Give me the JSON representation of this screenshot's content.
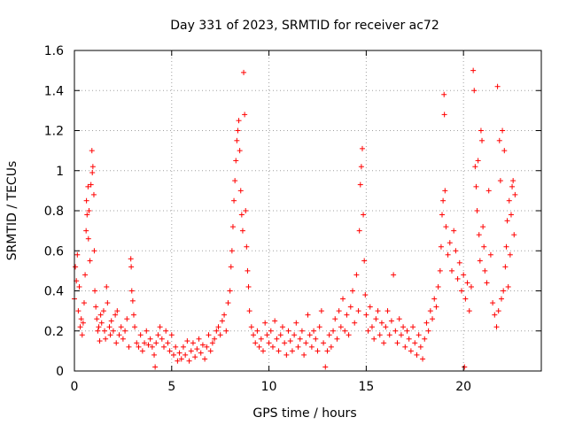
{
  "chart_data": {
    "type": "scatter",
    "title": "Day 331 of 2023, SRMTID for receiver ac72",
    "xlabel": "GPS time / hours",
    "ylabel": "SRMTID / TECUs",
    "xlim": [
      0,
      24
    ],
    "ylim": [
      0,
      1.6
    ],
    "x_ticks": [
      0,
      5,
      10,
      15,
      20
    ],
    "x_tick_labels": [
      "0",
      "5",
      "10",
      "15",
      "20"
    ],
    "y_ticks": [
      0,
      0.2,
      0.4,
      0.6,
      0.8,
      1,
      1.2,
      1.4,
      1.6
    ],
    "y_tick_labels": [
      "0",
      "0.2",
      "0.4",
      "0.6",
      "0.8",
      "1",
      "1.2",
      "1.4",
      "1.6"
    ],
    "grid": true,
    "marker": "plus",
    "series": [
      {
        "name": "SRMTID",
        "color": "#ff0000",
        "points": [
          [
            0.0,
            0.36
          ],
          [
            0.05,
            0.52
          ],
          [
            0.1,
            0.45
          ],
          [
            0.15,
            0.58
          ],
          [
            0.2,
            0.3
          ],
          [
            0.25,
            0.42
          ],
          [
            0.3,
            0.22
          ],
          [
            0.35,
            0.26
          ],
          [
            0.4,
            0.18
          ],
          [
            0.45,
            0.24
          ],
          [
            0.5,
            0.34
          ],
          [
            0.55,
            0.48
          ],
          [
            0.6,
            0.7
          ],
          [
            0.62,
            0.85
          ],
          [
            0.65,
            0.78
          ],
          [
            0.7,
            0.92
          ],
          [
            0.72,
            0.66
          ],
          [
            0.75,
            0.8
          ],
          [
            0.8,
            0.55
          ],
          [
            0.85,
            0.93
          ],
          [
            0.9,
            1.1
          ],
          [
            0.92,
            0.99
          ],
          [
            0.95,
            1.02
          ],
          [
            1.0,
            0.88
          ],
          [
            1.02,
            0.6
          ],
          [
            1.05,
            0.4
          ],
          [
            1.1,
            0.32
          ],
          [
            1.15,
            0.26
          ],
          [
            1.2,
            0.2
          ],
          [
            1.25,
            0.22
          ],
          [
            1.3,
            0.15
          ],
          [
            1.35,
            0.28
          ],
          [
            1.4,
            0.24
          ],
          [
            1.5,
            0.3
          ],
          [
            1.55,
            0.2
          ],
          [
            1.6,
            0.16
          ],
          [
            1.65,
            0.42
          ],
          [
            1.7,
            0.34
          ],
          [
            1.8,
            0.22
          ],
          [
            1.85,
            0.18
          ],
          [
            1.9,
            0.25
          ],
          [
            2.0,
            0.2
          ],
          [
            2.1,
            0.28
          ],
          [
            2.15,
            0.14
          ],
          [
            2.2,
            0.3
          ],
          [
            2.3,
            0.18
          ],
          [
            2.4,
            0.22
          ],
          [
            2.5,
            0.16
          ],
          [
            2.6,
            0.2
          ],
          [
            2.7,
            0.26
          ],
          [
            2.8,
            0.12
          ],
          [
            2.9,
            0.56
          ],
          [
            2.92,
            0.52
          ],
          [
            2.95,
            0.4
          ],
          [
            3.0,
            0.35
          ],
          [
            3.05,
            0.28
          ],
          [
            3.1,
            0.22
          ],
          [
            3.2,
            0.14
          ],
          [
            3.3,
            0.12
          ],
          [
            3.4,
            0.18
          ],
          [
            3.5,
            0.1
          ],
          [
            3.6,
            0.14
          ],
          [
            3.7,
            0.2
          ],
          [
            3.8,
            0.13
          ],
          [
            3.9,
            0.16
          ],
          [
            4.0,
            0.12
          ],
          [
            4.1,
            0.08
          ],
          [
            4.15,
            0.02
          ],
          [
            4.2,
            0.14
          ],
          [
            4.3,
            0.18
          ],
          [
            4.4,
            0.22
          ],
          [
            4.5,
            0.16
          ],
          [
            4.6,
            0.12
          ],
          [
            4.7,
            0.2
          ],
          [
            4.8,
            0.14
          ],
          [
            4.9,
            0.1
          ],
          [
            5.0,
            0.18
          ],
          [
            5.1,
            0.08
          ],
          [
            5.2,
            0.12
          ],
          [
            5.3,
            0.05
          ],
          [
            5.4,
            0.09
          ],
          [
            5.5,
            0.06
          ],
          [
            5.6,
            0.12
          ],
          [
            5.7,
            0.08
          ],
          [
            5.8,
            0.15
          ],
          [
            5.9,
            0.05
          ],
          [
            6.0,
            0.1
          ],
          [
            6.1,
            0.14
          ],
          [
            6.2,
            0.07
          ],
          [
            6.3,
            0.11
          ],
          [
            6.4,
            0.16
          ],
          [
            6.5,
            0.09
          ],
          [
            6.6,
            0.13
          ],
          [
            6.7,
            0.06
          ],
          [
            6.8,
            0.12
          ],
          [
            6.9,
            0.18
          ],
          [
            7.0,
            0.1
          ],
          [
            7.1,
            0.14
          ],
          [
            7.2,
            0.16
          ],
          [
            7.3,
            0.2
          ],
          [
            7.4,
            0.22
          ],
          [
            7.5,
            0.18
          ],
          [
            7.6,
            0.25
          ],
          [
            7.7,
            0.28
          ],
          [
            7.8,
            0.2
          ],
          [
            7.9,
            0.34
          ],
          [
            8.0,
            0.4
          ],
          [
            8.05,
            0.52
          ],
          [
            8.1,
            0.6
          ],
          [
            8.15,
            0.72
          ],
          [
            8.2,
            0.85
          ],
          [
            8.25,
            0.95
          ],
          [
            8.3,
            1.05
          ],
          [
            8.35,
            1.15
          ],
          [
            8.4,
            1.2
          ],
          [
            8.45,
            1.25
          ],
          [
            8.5,
            1.1
          ],
          [
            8.55,
            0.9
          ],
          [
            8.6,
            0.78
          ],
          [
            8.65,
            0.7
          ],
          [
            8.7,
            1.49
          ],
          [
            8.75,
            1.28
          ],
          [
            8.8,
            0.8
          ],
          [
            8.85,
            0.62
          ],
          [
            8.9,
            0.5
          ],
          [
            8.95,
            0.42
          ],
          [
            9.0,
            0.3
          ],
          [
            9.1,
            0.22
          ],
          [
            9.2,
            0.18
          ],
          [
            9.3,
            0.14
          ],
          [
            9.4,
            0.2
          ],
          [
            9.5,
            0.12
          ],
          [
            9.6,
            0.16
          ],
          [
            9.7,
            0.1
          ],
          [
            9.8,
            0.24
          ],
          [
            9.9,
            0.18
          ],
          [
            10.0,
            0.14
          ],
          [
            10.1,
            0.2
          ],
          [
            10.2,
            0.12
          ],
          [
            10.3,
            0.25
          ],
          [
            10.4,
            0.16
          ],
          [
            10.5,
            0.1
          ],
          [
            10.6,
            0.18
          ],
          [
            10.7,
            0.22
          ],
          [
            10.8,
            0.14
          ],
          [
            10.9,
            0.08
          ],
          [
            11.0,
            0.2
          ],
          [
            11.1,
            0.15
          ],
          [
            11.2,
            0.1
          ],
          [
            11.3,
            0.18
          ],
          [
            11.4,
            0.24
          ],
          [
            11.5,
            0.12
          ],
          [
            11.6,
            0.16
          ],
          [
            11.7,
            0.2
          ],
          [
            11.8,
            0.08
          ],
          [
            11.9,
            0.14
          ],
          [
            12.0,
            0.28
          ],
          [
            12.1,
            0.18
          ],
          [
            12.2,
            0.12
          ],
          [
            12.3,
            0.2
          ],
          [
            12.4,
            0.16
          ],
          [
            12.5,
            0.1
          ],
          [
            12.6,
            0.22
          ],
          [
            12.7,
            0.3
          ],
          [
            12.8,
            0.14
          ],
          [
            12.9,
            0.02
          ],
          [
            13.0,
            0.1
          ],
          [
            13.1,
            0.18
          ],
          [
            13.2,
            0.12
          ],
          [
            13.3,
            0.2
          ],
          [
            13.4,
            0.26
          ],
          [
            13.5,
            0.16
          ],
          [
            13.6,
            0.3
          ],
          [
            13.7,
            0.22
          ],
          [
            13.8,
            0.36
          ],
          [
            13.9,
            0.2
          ],
          [
            14.0,
            0.28
          ],
          [
            14.1,
            0.18
          ],
          [
            14.2,
            0.32
          ],
          [
            14.3,
            0.4
          ],
          [
            14.4,
            0.24
          ],
          [
            14.5,
            0.48
          ],
          [
            14.6,
            0.3
          ],
          [
            14.65,
            0.7
          ],
          [
            14.7,
            0.93
          ],
          [
            14.75,
            1.02
          ],
          [
            14.8,
            1.11
          ],
          [
            14.85,
            0.78
          ],
          [
            14.9,
            0.55
          ],
          [
            14.95,
            0.38
          ],
          [
            15.0,
            0.28
          ],
          [
            15.1,
            0.2
          ],
          [
            15.2,
            0.32
          ],
          [
            15.3,
            0.22
          ],
          [
            15.4,
            0.16
          ],
          [
            15.5,
            0.26
          ],
          [
            15.6,
            0.3
          ],
          [
            15.7,
            0.18
          ],
          [
            15.8,
            0.24
          ],
          [
            15.9,
            0.14
          ],
          [
            16.0,
            0.22
          ],
          [
            16.1,
            0.3
          ],
          [
            16.2,
            0.18
          ],
          [
            16.3,
            0.25
          ],
          [
            16.4,
            0.48
          ],
          [
            16.5,
            0.2
          ],
          [
            16.6,
            0.14
          ],
          [
            16.7,
            0.26
          ],
          [
            16.8,
            0.18
          ],
          [
            16.9,
            0.22
          ],
          [
            17.0,
            0.12
          ],
          [
            17.1,
            0.2
          ],
          [
            17.2,
            0.16
          ],
          [
            17.3,
            0.1
          ],
          [
            17.4,
            0.22
          ],
          [
            17.5,
            0.14
          ],
          [
            17.6,
            0.08
          ],
          [
            17.7,
            0.18
          ],
          [
            17.8,
            0.12
          ],
          [
            17.9,
            0.06
          ],
          [
            18.0,
            0.16
          ],
          [
            18.1,
            0.24
          ],
          [
            18.2,
            0.2
          ],
          [
            18.3,
            0.3
          ],
          [
            18.4,
            0.26
          ],
          [
            18.5,
            0.36
          ],
          [
            18.6,
            0.32
          ],
          [
            18.7,
            0.42
          ],
          [
            18.8,
            0.5
          ],
          [
            18.85,
            0.62
          ],
          [
            18.9,
            0.78
          ],
          [
            18.95,
            0.85
          ],
          [
            19.0,
            1.38
          ],
          [
            19.02,
            1.28
          ],
          [
            19.05,
            0.9
          ],
          [
            19.1,
            0.72
          ],
          [
            19.2,
            0.58
          ],
          [
            19.3,
            0.64
          ],
          [
            19.4,
            0.5
          ],
          [
            19.5,
            0.7
          ],
          [
            19.6,
            0.6
          ],
          [
            19.7,
            0.46
          ],
          [
            19.8,
            0.54
          ],
          [
            19.9,
            0.4
          ],
          [
            20.0,
            0.48
          ],
          [
            20.05,
            0.02
          ],
          [
            20.1,
            0.36
          ],
          [
            20.2,
            0.44
          ],
          [
            20.3,
            0.3
          ],
          [
            20.4,
            0.42
          ],
          [
            20.5,
            1.5
          ],
          [
            20.55,
            1.4
          ],
          [
            20.6,
            1.02
          ],
          [
            20.65,
            0.92
          ],
          [
            20.7,
            0.8
          ],
          [
            20.75,
            1.05
          ],
          [
            20.8,
            0.68
          ],
          [
            20.85,
            0.55
          ],
          [
            20.9,
            1.2
          ],
          [
            20.95,
            1.15
          ],
          [
            21.0,
            0.72
          ],
          [
            21.05,
            0.62
          ],
          [
            21.1,
            0.5
          ],
          [
            21.2,
            0.44
          ],
          [
            21.3,
            0.9
          ],
          [
            21.4,
            0.58
          ],
          [
            21.5,
            0.34
          ],
          [
            21.6,
            0.28
          ],
          [
            21.7,
            0.22
          ],
          [
            21.75,
            1.42
          ],
          [
            21.8,
            0.3
          ],
          [
            21.85,
            1.15
          ],
          [
            21.9,
            0.95
          ],
          [
            21.95,
            0.36
          ],
          [
            22.0,
            1.2
          ],
          [
            22.05,
            0.4
          ],
          [
            22.1,
            1.1
          ],
          [
            22.15,
            0.52
          ],
          [
            22.2,
            0.62
          ],
          [
            22.25,
            0.75
          ],
          [
            22.3,
            0.42
          ],
          [
            22.35,
            0.85
          ],
          [
            22.4,
            0.58
          ],
          [
            22.45,
            0.78
          ],
          [
            22.5,
            0.92
          ],
          [
            22.55,
            0.95
          ],
          [
            22.6,
            0.68
          ],
          [
            22.65,
            0.88
          ]
        ]
      }
    ]
  }
}
